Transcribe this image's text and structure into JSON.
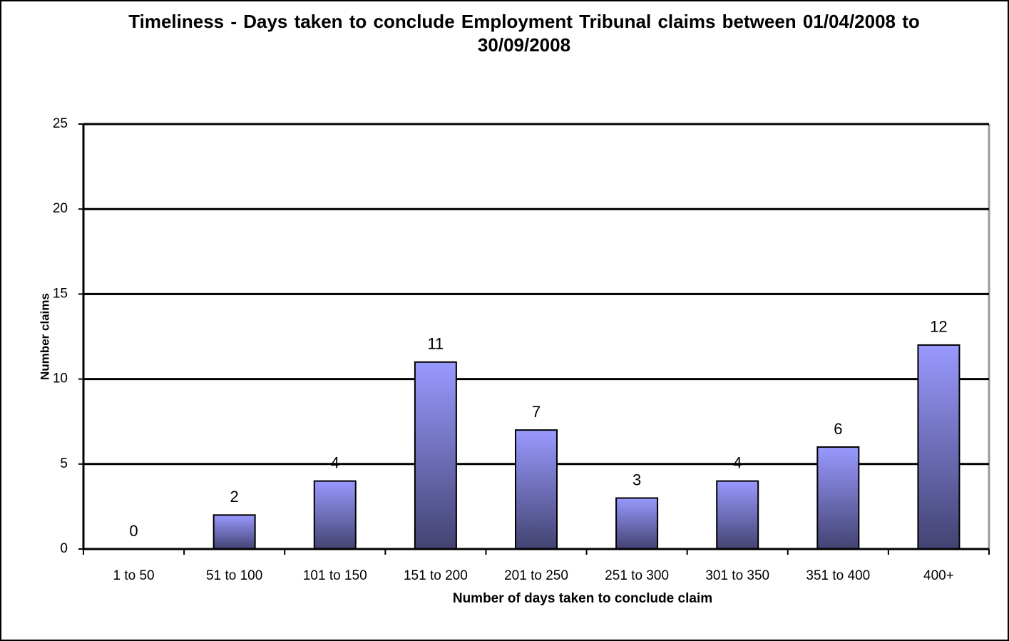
{
  "chart_data": {
    "type": "bar",
    "title": "Timeliness - Days taken to conclude Employment Tribunal claims between 01/04/2008 to 30/09/2008",
    "x_label": "Number of days taken to conclude claim",
    "y_label": "Number claims",
    "categories": [
      "1 to 50",
      "51 to 100",
      "101 to 150",
      "151 to 200",
      "201 to 250",
      "251 to 300",
      "301 to 350",
      "351 to 400",
      "400+"
    ],
    "values": [
      0,
      2,
      4,
      11,
      7,
      3,
      4,
      6,
      12
    ],
    "color": "#9999ff",
    "ylim": [
      0,
      25
    ],
    "yticks": [
      0,
      5,
      10,
      15,
      20,
      25
    ],
    "grid": true
  }
}
